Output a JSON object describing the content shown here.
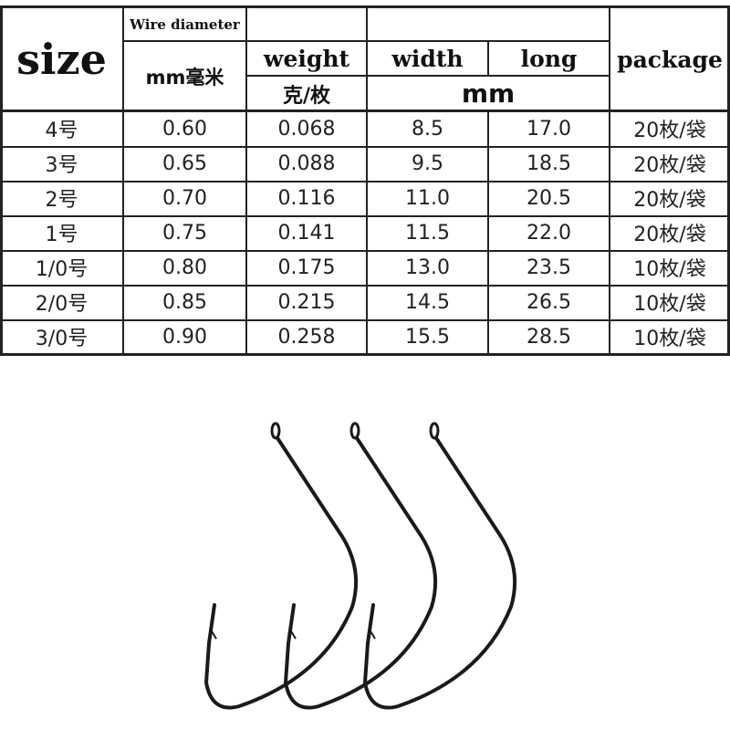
{
  "table": {
    "header": {
      "size": "size",
      "wire_diameter": "Wire diameter",
      "wire_unit": "mm毫米",
      "weight": "weight",
      "weight_unit": "克/枚",
      "width": "width",
      "long": "long",
      "dim_unit": "mm",
      "package": "package"
    },
    "rows": [
      [
        "4号",
        "0.60",
        "0.068",
        "8.5",
        "17.0",
        "20枚/袋"
      ],
      [
        "3号",
        "0.65",
        "0.088",
        "9.5",
        "18.5",
        "20枚/袋"
      ],
      [
        "2号",
        "0.70",
        "0.116",
        "11.0",
        "20.5",
        "20枚/袋"
      ],
      [
        "1号",
        "0.75",
        "0.141",
        "11.5",
        "22.0",
        "20枚/袋"
      ],
      [
        "1/0号",
        "0.80",
        "0.175",
        "13.0",
        "23.5",
        "10枚/袋"
      ],
      [
        "2/0号",
        "0.85",
        "0.215",
        "14.5",
        "26.5",
        "10枚/袋"
      ],
      [
        "3/0号",
        "0.90",
        "0.258",
        "15.5",
        "28.5",
        "10枚/袋"
      ]
    ]
  },
  "image": {
    "subject": "fishing-hooks",
    "count": 3,
    "color": "#1a1a1a"
  }
}
